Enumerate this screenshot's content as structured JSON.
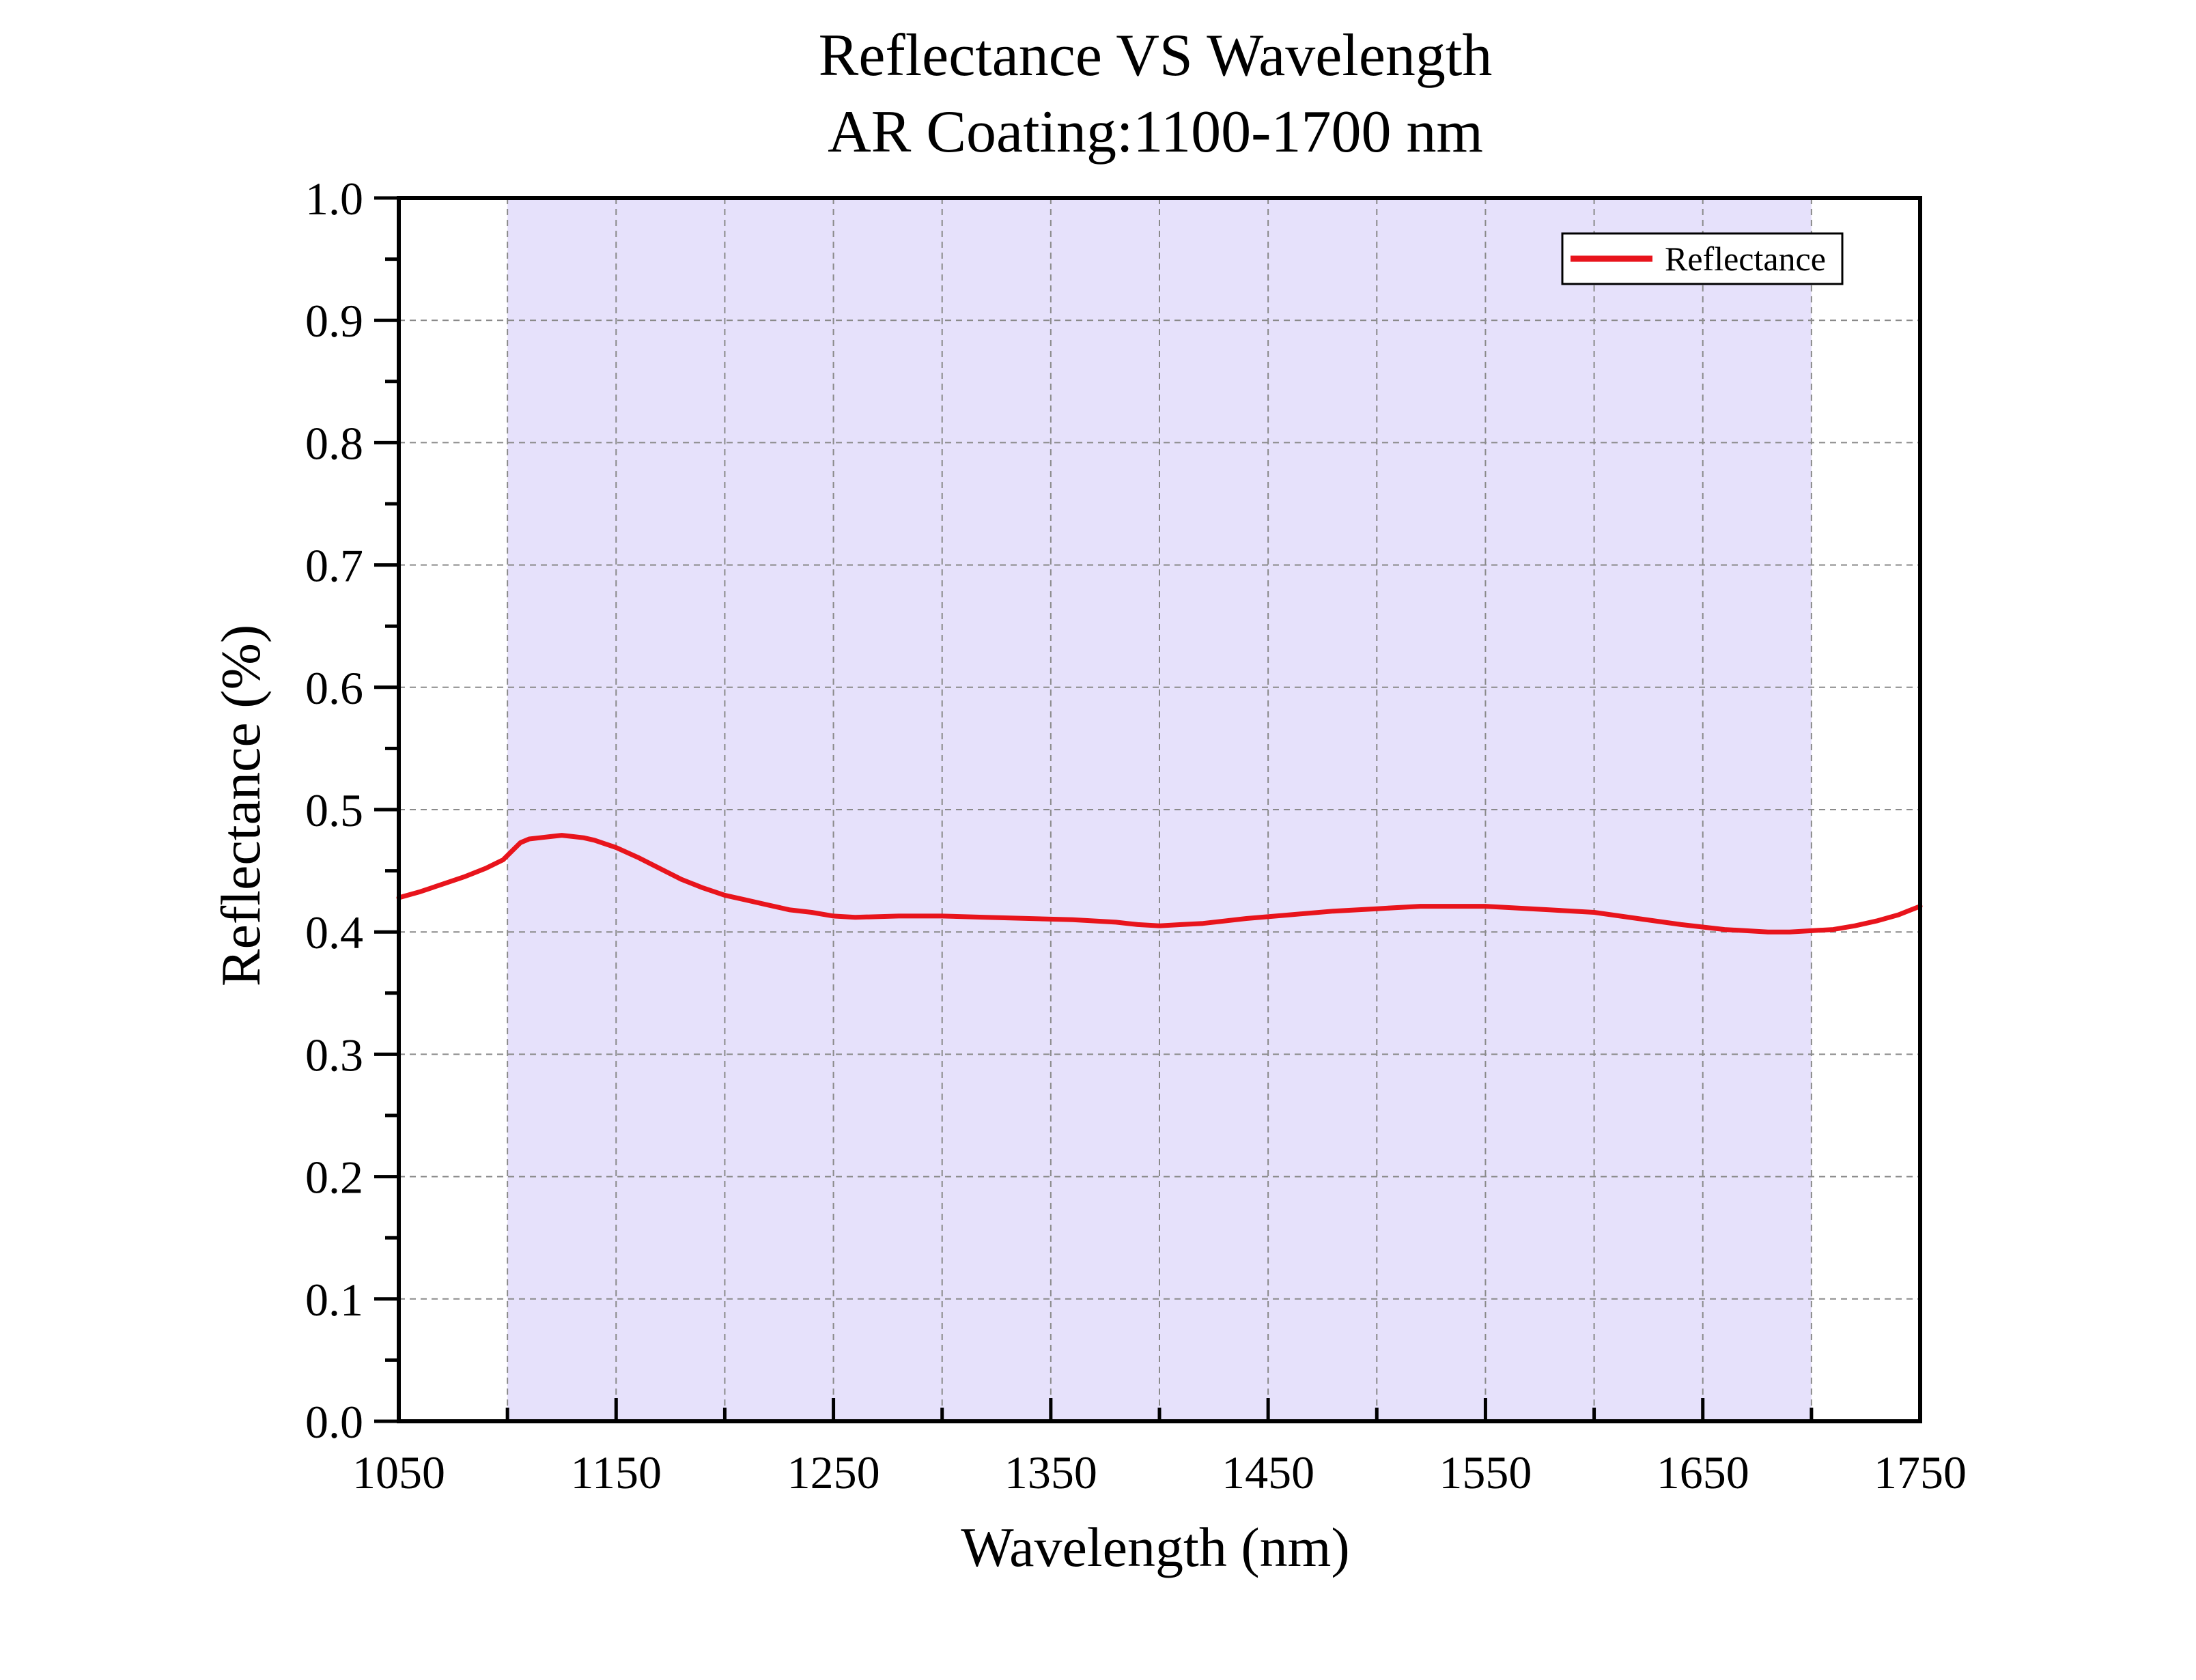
{
  "chart_data": {
    "type": "line",
    "title": "Reflectance VS Wavelength",
    "subtitle": "AR Coating:1100-1700 nm",
    "xlabel": "Wavelength (nm)",
    "ylabel": "Reflectance (%)",
    "xlim": [
      1050,
      1750
    ],
    "ylim": [
      0.0,
      1.0
    ],
    "xticks": [
      1050,
      1150,
      1250,
      1350,
      1450,
      1550,
      1650,
      1750
    ],
    "xtick_labels": [
      "1050",
      "1150",
      "1250",
      "1350",
      "1450",
      "1550",
      "1650",
      "1750"
    ],
    "yticks": [
      0.0,
      0.1,
      0.2,
      0.3,
      0.4,
      0.5,
      0.6,
      0.7,
      0.8,
      0.9,
      1.0
    ],
    "ytick_labels": [
      "0.0",
      "0.1",
      "0.2",
      "0.3",
      "0.4",
      "0.5",
      "0.6",
      "0.7",
      "0.8",
      "0.9",
      "1.0"
    ],
    "grid": true,
    "legend_position": "top-right",
    "shaded_band": {
      "x_start": 1100,
      "x_end": 1700,
      "color": "#e6e1fb"
    },
    "series": [
      {
        "name": "Reflectance",
        "color": "#e8141c",
        "x": [
          1050,
          1060,
          1070,
          1080,
          1090,
          1098,
          1102,
          1106,
          1110,
          1115,
          1120,
          1125,
          1130,
          1135,
          1140,
          1150,
          1160,
          1170,
          1180,
          1190,
          1200,
          1210,
          1220,
          1230,
          1240,
          1250,
          1260,
          1280,
          1300,
          1320,
          1340,
          1360,
          1380,
          1390,
          1400,
          1410,
          1420,
          1440,
          1460,
          1480,
          1500,
          1520,
          1540,
          1550,
          1560,
          1580,
          1600,
          1620,
          1640,
          1660,
          1680,
          1690,
          1700,
          1710,
          1720,
          1730,
          1740,
          1750
        ],
        "y": [
          0.428,
          0.433,
          0.439,
          0.445,
          0.452,
          0.459,
          0.466,
          0.473,
          0.476,
          0.477,
          0.478,
          0.479,
          0.478,
          0.477,
          0.475,
          0.469,
          0.461,
          0.452,
          0.443,
          0.436,
          0.43,
          0.426,
          0.422,
          0.418,
          0.416,
          0.413,
          0.412,
          0.413,
          0.413,
          0.412,
          0.411,
          0.41,
          0.408,
          0.406,
          0.405,
          0.406,
          0.407,
          0.411,
          0.414,
          0.417,
          0.419,
          0.421,
          0.421,
          0.421,
          0.42,
          0.418,
          0.416,
          0.411,
          0.406,
          0.402,
          0.4,
          0.4,
          0.401,
          0.402,
          0.405,
          0.409,
          0.414,
          0.421
        ]
      }
    ]
  }
}
